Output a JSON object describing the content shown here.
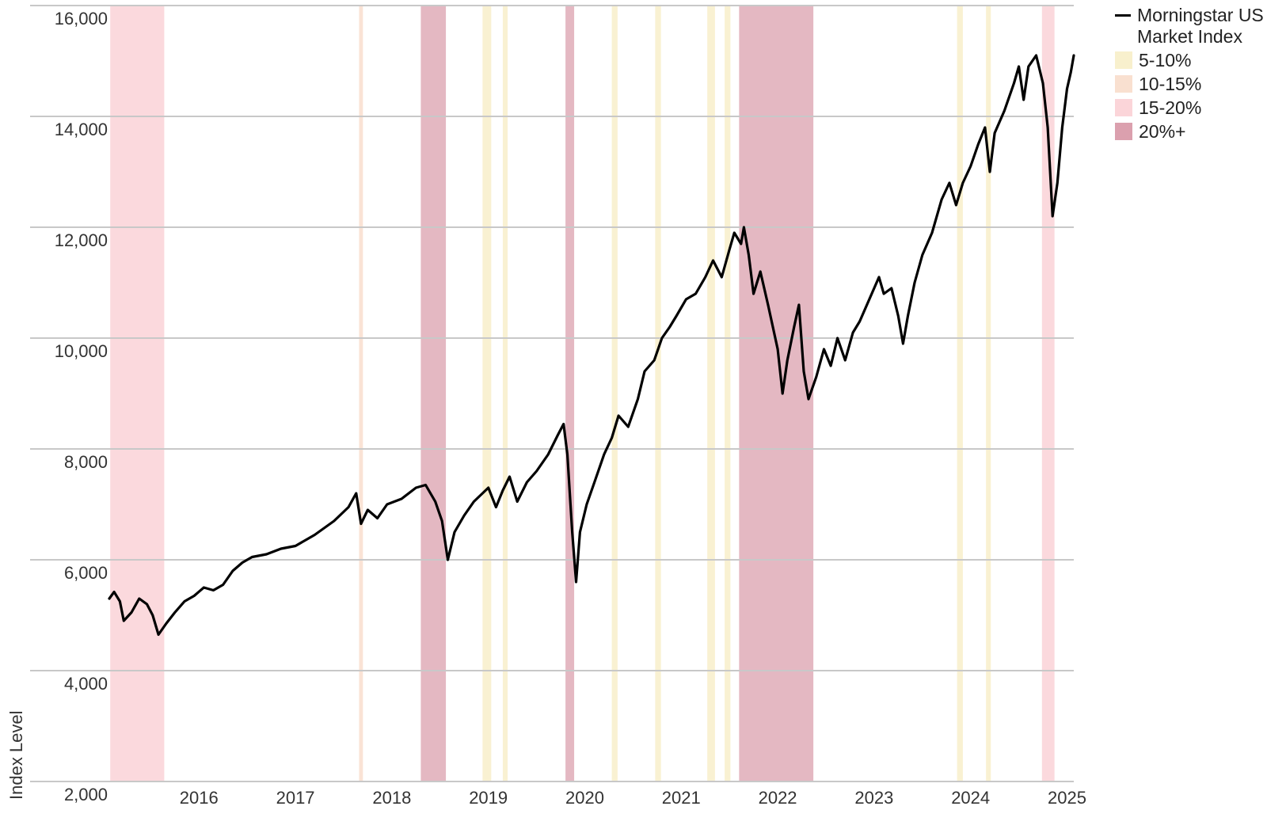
{
  "chart_data": {
    "type": "line",
    "ylabel": "Index Level",
    "ylim": [
      2000,
      16000
    ],
    "yticks": [
      "2,000",
      "4,000",
      "6,000",
      "8,000",
      "10,000",
      "12,000",
      "14,000",
      "16,000"
    ],
    "ytick_values": [
      2000,
      4000,
      6000,
      8000,
      10000,
      12000,
      14000,
      16000
    ],
    "xticks": [
      "2016",
      "2017",
      "2018",
      "2019",
      "2020",
      "2021",
      "2022",
      "2023",
      "2024",
      "2025"
    ],
    "xtick_values": [
      2016,
      2017,
      2018,
      2019,
      2020,
      2021,
      2022,
      2023,
      2024,
      2025
    ],
    "xlim": [
      2015.07,
      2025.07
    ],
    "grid": "horizontal",
    "legend_position": "top-right",
    "series": [
      {
        "name": "Morningstar US Market Index",
        "color": "#000000",
        "points": [
          [
            2015.07,
            5300
          ],
          [
            2015.12,
            5420
          ],
          [
            2015.18,
            5250
          ],
          [
            2015.22,
            4900
          ],
          [
            2015.3,
            5050
          ],
          [
            2015.38,
            5300
          ],
          [
            2015.46,
            5200
          ],
          [
            2015.52,
            5000
          ],
          [
            2015.58,
            4650
          ],
          [
            2015.66,
            4850
          ],
          [
            2015.75,
            5050
          ],
          [
            2015.85,
            5250
          ],
          [
            2015.95,
            5350
          ],
          [
            2016.05,
            5500
          ],
          [
            2016.15,
            5450
          ],
          [
            2016.25,
            5550
          ],
          [
            2016.35,
            5800
          ],
          [
            2016.45,
            5950
          ],
          [
            2016.55,
            6050
          ],
          [
            2016.7,
            6100
          ],
          [
            2016.85,
            6200
          ],
          [
            2017.0,
            6250
          ],
          [
            2017.2,
            6450
          ],
          [
            2017.4,
            6700
          ],
          [
            2017.55,
            6950
          ],
          [
            2017.63,
            7200
          ],
          [
            2017.68,
            6650
          ],
          [
            2017.75,
            6900
          ],
          [
            2017.85,
            6750
          ],
          [
            2017.95,
            7000
          ],
          [
            2018.1,
            7100
          ],
          [
            2018.25,
            7300
          ],
          [
            2018.35,
            7350
          ],
          [
            2018.45,
            7050
          ],
          [
            2018.52,
            6700
          ],
          [
            2018.58,
            6000
          ],
          [
            2018.65,
            6500
          ],
          [
            2018.75,
            6800
          ],
          [
            2018.85,
            7050
          ],
          [
            2019.0,
            7300
          ],
          [
            2019.08,
            6950
          ],
          [
            2019.15,
            7250
          ],
          [
            2019.22,
            7500
          ],
          [
            2019.3,
            7050
          ],
          [
            2019.4,
            7400
          ],
          [
            2019.5,
            7600
          ],
          [
            2019.62,
            7900
          ],
          [
            2019.72,
            8250
          ],
          [
            2019.78,
            8450
          ],
          [
            2019.82,
            7900
          ],
          [
            2019.87,
            6500
          ],
          [
            2019.91,
            5600
          ],
          [
            2019.95,
            6500
          ],
          [
            2020.02,
            7000
          ],
          [
            2020.1,
            7400
          ],
          [
            2020.2,
            7900
          ],
          [
            2020.28,
            8200
          ],
          [
            2020.35,
            8600
          ],
          [
            2020.45,
            8400
          ],
          [
            2020.55,
            8900
          ],
          [
            2020.62,
            9400
          ],
          [
            2020.72,
            9600
          ],
          [
            2020.8,
            10000
          ],
          [
            2020.88,
            10200
          ],
          [
            2020.95,
            10400
          ],
          [
            2021.05,
            10700
          ],
          [
            2021.15,
            10800
          ],
          [
            2021.25,
            11100
          ],
          [
            2021.33,
            11400
          ],
          [
            2021.42,
            11100
          ],
          [
            2021.5,
            11600
          ],
          [
            2021.55,
            11900
          ],
          [
            2021.62,
            11700
          ],
          [
            2021.65,
            12000
          ],
          [
            2021.7,
            11500
          ],
          [
            2021.75,
            10800
          ],
          [
            2021.82,
            11200
          ],
          [
            2021.9,
            10600
          ],
          [
            2021.95,
            10200
          ],
          [
            2022.0,
            9800
          ],
          [
            2022.05,
            9000
          ],
          [
            2022.1,
            9600
          ],
          [
            2022.17,
            10200
          ],
          [
            2022.22,
            10600
          ],
          [
            2022.27,
            9400
          ],
          [
            2022.32,
            8900
          ],
          [
            2022.4,
            9300
          ],
          [
            2022.48,
            9800
          ],
          [
            2022.55,
            9500
          ],
          [
            2022.62,
            10000
          ],
          [
            2022.7,
            9600
          ],
          [
            2022.78,
            10100
          ],
          [
            2022.85,
            10300
          ],
          [
            2022.95,
            10700
          ],
          [
            2023.05,
            11100
          ],
          [
            2023.1,
            10800
          ],
          [
            2023.18,
            10900
          ],
          [
            2023.25,
            10400
          ],
          [
            2023.3,
            9900
          ],
          [
            2023.35,
            10400
          ],
          [
            2023.42,
            11000
          ],
          [
            2023.5,
            11500
          ],
          [
            2023.6,
            11900
          ],
          [
            2023.7,
            12500
          ],
          [
            2023.78,
            12800
          ],
          [
            2023.85,
            12400
          ],
          [
            2023.92,
            12800
          ],
          [
            2024.0,
            13100
          ],
          [
            2024.08,
            13500
          ],
          [
            2024.15,
            13800
          ],
          [
            2024.2,
            13000
          ],
          [
            2024.25,
            13700
          ],
          [
            2024.35,
            14100
          ],
          [
            2024.45,
            14600
          ],
          [
            2024.5,
            14900
          ],
          [
            2024.55,
            14300
          ],
          [
            2024.6,
            14900
          ],
          [
            2024.68,
            15100
          ],
          [
            2024.75,
            14600
          ],
          [
            2024.8,
            13800
          ],
          [
            2024.85,
            12200
          ],
          [
            2024.9,
            12800
          ],
          [
            2024.95,
            13800
          ],
          [
            2025.0,
            14500
          ],
          [
            2025.04,
            14800
          ],
          [
            2025.07,
            15100
          ]
        ]
      }
    ],
    "shaded_periods": [
      {
        "category": "15-20%",
        "start": 2015.08,
        "end": 2015.64
      },
      {
        "category": "10-15%",
        "start": 2017.66,
        "end": 2017.7
      },
      {
        "category": "20%+",
        "start": 2018.3,
        "end": 2018.56
      },
      {
        "category": "5-10%",
        "start": 2018.94,
        "end": 2019.03
      },
      {
        "category": "5-10%",
        "start": 2019.15,
        "end": 2019.2
      },
      {
        "category": "20%+",
        "start": 2019.8,
        "end": 2019.89
      },
      {
        "category": "5-10%",
        "start": 2020.28,
        "end": 2020.34
      },
      {
        "category": "5-10%",
        "start": 2020.73,
        "end": 2020.79
      },
      {
        "category": "5-10%",
        "start": 2021.27,
        "end": 2021.35
      },
      {
        "category": "5-10%",
        "start": 2021.45,
        "end": 2021.51
      },
      {
        "category": "20%+",
        "start": 2021.6,
        "end": 2022.37
      },
      {
        "category": "5-10%",
        "start": 2023.86,
        "end": 2023.92
      },
      {
        "category": "5-10%",
        "start": 2024.16,
        "end": 2024.21
      },
      {
        "category": "15-20%",
        "start": 2024.74,
        "end": 2024.87
      }
    ],
    "legend": [
      {
        "label": "Morningstar US Market Index",
        "kind": "line",
        "color": "#000000"
      },
      {
        "label": "5-10%",
        "kind": "swatch",
        "color": "#f8f0cd"
      },
      {
        "label": "10-15%",
        "kind": "swatch",
        "color": "#f9e0d0"
      },
      {
        "label": "15-20%",
        "kind": "swatch",
        "color": "#fbd5d9"
      },
      {
        "label": "20%+",
        "kind": "swatch",
        "color": "#dba0ae"
      }
    ]
  }
}
